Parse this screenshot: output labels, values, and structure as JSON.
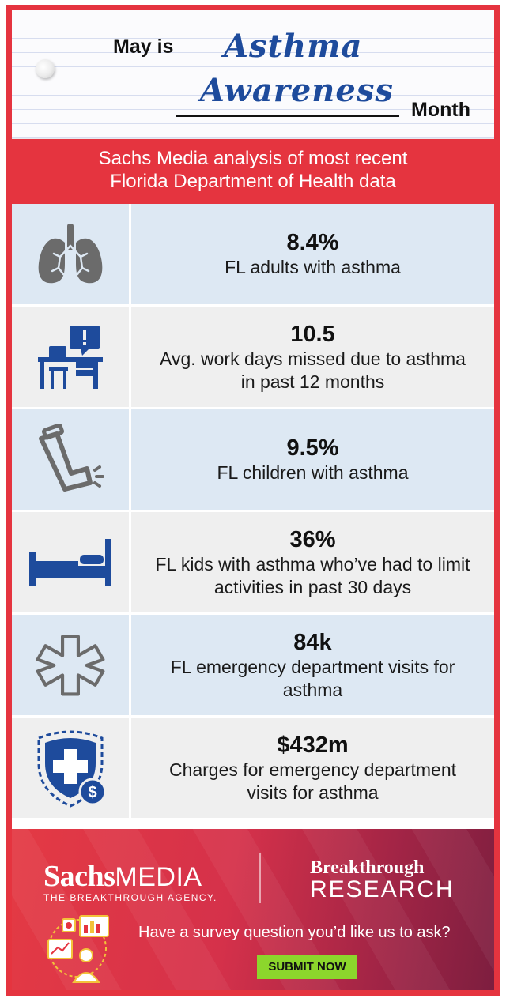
{
  "header": {
    "prefix": "May is",
    "script_line1": "Asthma",
    "script_line2": "Awareness",
    "suffix": "Month"
  },
  "subtitle": {
    "line1": "Sachs Media analysis of most recent",
    "line2": "Florida Department of Health data"
  },
  "stats": [
    {
      "icon": "lungs-icon",
      "value": "8.4%",
      "label": "FL adults with asthma"
    },
    {
      "icon": "desk-alert-icon",
      "value": "10.5",
      "label": "Avg. work days missed due to asthma in past 12 months"
    },
    {
      "icon": "inhaler-icon",
      "value": "9.5%",
      "label": "FL children with asthma"
    },
    {
      "icon": "bed-icon",
      "value": "36%",
      "label": "FL kids with asthma who’ve had to limit activities in past 30 days"
    },
    {
      "icon": "medical-star-icon",
      "value": "84k",
      "label": "FL emergency department visits for asthma"
    },
    {
      "icon": "insurance-shield-icon",
      "value": "$432m",
      "label": "Charges for emergency department visits for asthma"
    }
  ],
  "footer": {
    "brand_bold": "Sachs",
    "brand_light": "MEDIA",
    "tagline": "THE BREAKTHROUGH AGENCY.",
    "research_line1": "Breakthrough",
    "research_line2": "RESEARCH",
    "question": "Have a survey question you’d like us to ask?",
    "button_label": "SUBMIT NOW"
  },
  "colors": {
    "accent_red": "#e5343f",
    "script_blue": "#1e4b9c",
    "row_blue": "#dde8f3",
    "row_grey": "#efefef",
    "icon_grey": "#6b6b6b",
    "button_green": "#8cd62c"
  }
}
